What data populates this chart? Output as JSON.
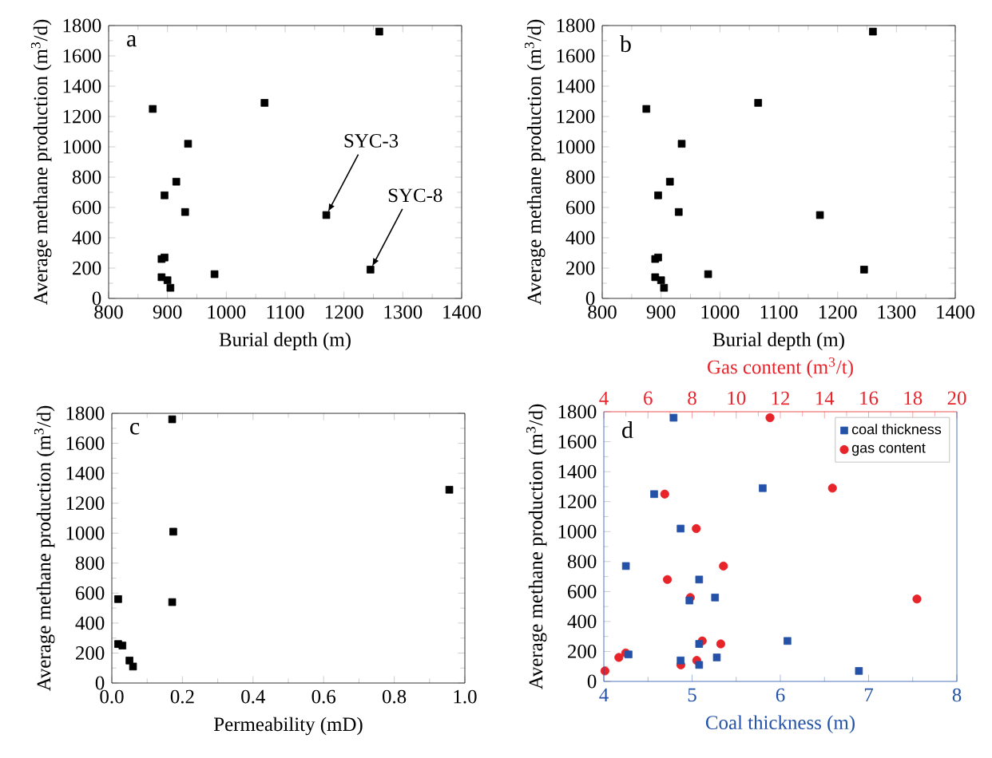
{
  "chart_data": [
    {
      "type": "scatter",
      "xlabel": "Burial depth (m)",
      "ylabel": "Average methane production (m$^{3}$/d)",
      "marker": "square",
      "xlim": [
        800,
        1400
      ],
      "xticks": [
        800,
        900,
        1000,
        1100,
        1200,
        1300,
        1400
      ],
      "ylim": [
        0,
        1800
      ],
      "yticks": [
        0,
        200,
        400,
        600,
        800,
        1000,
        1200,
        1400,
        1600,
        1800
      ],
      "annotations": [
        "a",
        {
          "text": "SYC-3",
          "x": 1170,
          "y": 550
        },
        {
          "text": "SYC-8",
          "x": 1245,
          "y": 190
        }
      ],
      "series": [
        {
          "color": "#000000",
          "x": [
            875,
            1065,
            1260,
            935,
            915,
            895,
            930,
            1170,
            890,
            895,
            980,
            1245,
            890,
            900,
            905
          ],
          "values": [
            1250,
            1290,
            1760,
            1020,
            770,
            680,
            570,
            550,
            260,
            270,
            160,
            190,
            140,
            120,
            70
          ]
        }
      ]
    },
    {
      "type": "scatter",
      "xlabel": "Burial depth (m)",
      "ylabel": "Average methane production (m$^{3}$/d)",
      "marker": "square",
      "xlim": [
        800,
        1400
      ],
      "xticks": [
        800,
        900,
        1000,
        1100,
        1200,
        1300,
        1400
      ],
      "ylim": [
        0,
        1800
      ],
      "yticks": [
        0,
        200,
        400,
        600,
        800,
        1000,
        1200,
        1400,
        1600,
        1800
      ],
      "annotations": [
        "b"
      ],
      "series": [
        {
          "color": "#000000",
          "x": [
            875,
            1065,
            1260,
            935,
            915,
            895,
            930,
            1170,
            890,
            895,
            980,
            1245,
            890,
            900,
            905
          ],
          "values": [
            1250,
            1290,
            1760,
            1020,
            770,
            680,
            570,
            550,
            260,
            270,
            160,
            190,
            140,
            120,
            70
          ]
        }
      ]
    },
    {
      "type": "scatter",
      "xlabel": "Permeability (mD)",
      "ylabel": "Average methane production (m$^{3}$/d)",
      "marker": "square",
      "xlim": [
        0,
        1
      ],
      "xticks": [
        {
          "value": 0,
          "label": "0.0"
        },
        0.2,
        0.4,
        0.6,
        0.8,
        {
          "value": 1,
          "label": "1.0"
        }
      ],
      "ylim": [
        0,
        1800
      ],
      "yticks": [
        0,
        200,
        400,
        600,
        800,
        1000,
        1200,
        1400,
        1600,
        1800
      ],
      "annotations": [
        "c"
      ],
      "series": [
        {
          "color": "#000000",
          "x": [
            0.171,
            0.956,
            0.174,
            0.018,
            0.171,
            0.018,
            0.03,
            0.05,
            0.06
          ],
          "values": [
            1760,
            1290,
            1010,
            560,
            540,
            260,
            250,
            150,
            110
          ]
        }
      ]
    },
    {
      "type": "scatter",
      "xlabel": "Coal thickness (m)",
      "x2label": "Gas content (m$^{3}$/t)",
      "ylabel": "Average methane production (m$^{3}$/d)",
      "legend": "top right",
      "xlim": [
        4,
        8
      ],
      "xticks": [
        4,
        5,
        6,
        7,
        8
      ],
      "x2lim": [
        4,
        20
      ],
      "x2ticks": [
        4,
        6,
        8,
        10,
        12,
        14,
        16,
        18,
        20
      ],
      "ylim": [
        0,
        1800
      ],
      "yticks": [
        0,
        200,
        400,
        600,
        800,
        1000,
        1200,
        1400,
        1600,
        1800
      ],
      "annotations": [
        "d"
      ],
      "series": [
        {
          "name": "coal thickness",
          "color": "#2352a8",
          "marker": "square",
          "x": [
            4.79,
            4.57,
            5.8,
            4.87,
            4.25,
            5.08,
            5.26,
            4.97,
            5.08,
            6.08,
            4.28,
            4.87,
            5.28,
            5.08,
            6.89
          ],
          "values": [
            1760,
            1250,
            1290,
            1020,
            770,
            680,
            560,
            540,
            250,
            270,
            180,
            140,
            160,
            110,
            70
          ]
        },
        {
          "name": "gas content",
          "color": "#e8242b",
          "marker": "circle",
          "axis": "x2",
          "x": [
            11.53,
            14.36,
            6.76,
            8.19,
            9.42,
            6.88,
            7.92,
            18.19,
            8.46,
            9.3,
            4.99,
            4.68,
            8.21,
            7.49,
            4.05
          ],
          "values": [
            1760,
            1290,
            1250,
            1020,
            770,
            680,
            560,
            550,
            270,
            250,
            190,
            160,
            140,
            110,
            70
          ]
        }
      ]
    }
  ]
}
